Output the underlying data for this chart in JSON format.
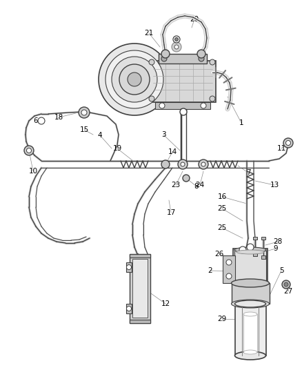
{
  "background_color": "#ffffff",
  "line_color": "#404040",
  "label_color": "#000000",
  "figsize": [
    4.38,
    5.33
  ],
  "dpi": 100
}
